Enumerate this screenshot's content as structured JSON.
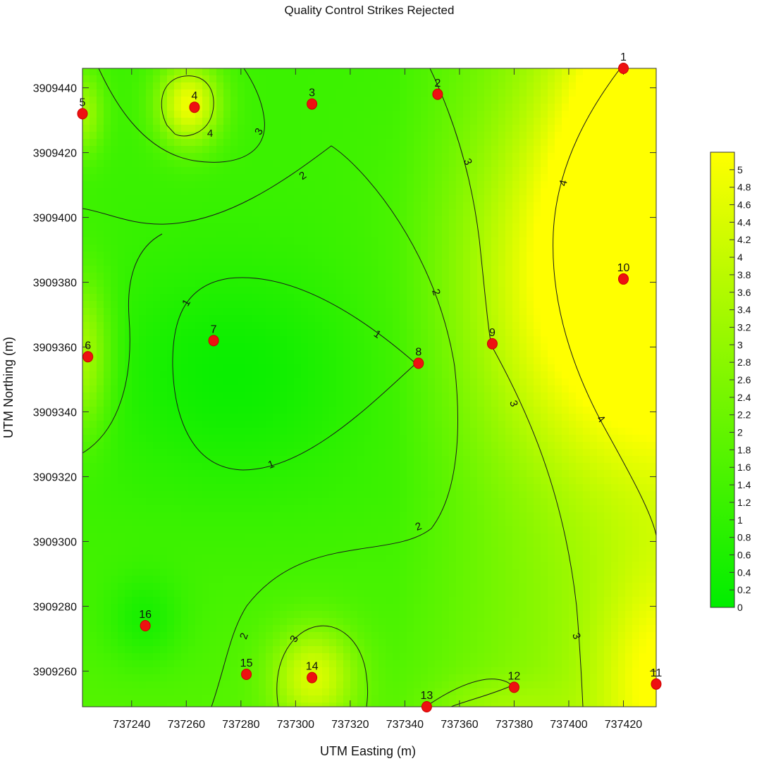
{
  "chart_data": {
    "type": "contour",
    "title": "Quality Control Strikes Rejected",
    "xlabel": "UTM Easting (m)",
    "ylabel": "UTM Northing (m)",
    "xlim": [
      737222,
      737432
    ],
    "ylim": [
      3909249,
      3909446
    ],
    "xticks": [
      737240,
      737260,
      737280,
      737300,
      737320,
      737340,
      737360,
      737380,
      737400,
      737420
    ],
    "yticks": [
      3909260,
      3909280,
      3909300,
      3909320,
      3909340,
      3909360,
      3909380,
      3909400,
      3909420,
      3909440
    ],
    "zlim": [
      0,
      5.2
    ],
    "colorbar_ticks": [
      "0",
      "0.2",
      "0.4",
      "0.6",
      "0.8",
      "1",
      "1.2",
      "1.4",
      "1.6",
      "1.8",
      "2",
      "2.2",
      "2.4",
      "2.6",
      "2.8",
      "3",
      "3.2",
      "3.4",
      "3.6",
      "3.8",
      "4",
      "4.2",
      "4.4",
      "4.6",
      "4.8",
      "5"
    ],
    "colormap": [
      "#00ee00",
      "#ffff00"
    ],
    "points": [
      {
        "label": "1",
        "x": 737420,
        "y": 3909446
      },
      {
        "label": "2",
        "x": 737352,
        "y": 3909438
      },
      {
        "label": "3",
        "x": 737306,
        "y": 3909435
      },
      {
        "label": "4",
        "x": 737263,
        "y": 3909434
      },
      {
        "label": "5",
        "x": 737222,
        "y": 3909432
      },
      {
        "label": "6",
        "x": 737224,
        "y": 3909357
      },
      {
        "label": "7",
        "x": 737270,
        "y": 3909362
      },
      {
        "label": "8",
        "x": 737345,
        "y": 3909355
      },
      {
        "label": "9",
        "x": 737372,
        "y": 3909361
      },
      {
        "label": "10",
        "x": 737420,
        "y": 3909381
      },
      {
        "label": "11",
        "x": 737432,
        "y": 3909256
      },
      {
        "label": "12",
        "x": 737380,
        "y": 3909255
      },
      {
        "label": "13",
        "x": 737348,
        "y": 3909249
      },
      {
        "label": "14",
        "x": 737306,
        "y": 3909258
      },
      {
        "label": "15",
        "x": 737282,
        "y": 3909259
      },
      {
        "label": "16",
        "x": 737245,
        "y": 3909274
      }
    ],
    "contour_labels": [
      "1",
      "1",
      "1",
      "2",
      "2",
      "2",
      "2",
      "3",
      "3",
      "3",
      "3",
      "3",
      "4",
      "4",
      "4"
    ]
  }
}
